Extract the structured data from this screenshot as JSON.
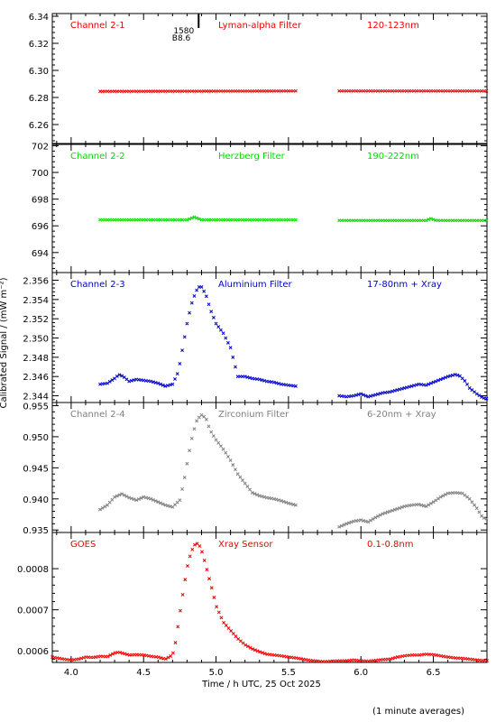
{
  "chart_data": {
    "type": "scatter",
    "xlabel": "Time / h UTC, 25 Oct 2025",
    "ylabel": "Calibrated Signal / (mW m⁻²)",
    "footnote": "(1 minute averages)",
    "xlim": [
      3.87,
      6.87
    ],
    "xticks": [
      "4.0",
      "4.5",
      "5.0",
      "5.5",
      "6.0",
      "6.5"
    ],
    "marker": {
      "label": "1580",
      "sublabel": "B8.6",
      "x": 4.88
    },
    "panels": [
      {
        "channel": "Channel 2-1",
        "filter": "Lyman-alpha Filter",
        "band": "120-123nm",
        "color": "#ee0000",
        "ylim": [
          6.246,
          6.342
        ],
        "yticks": [
          "6.26",
          "6.28",
          "6.30",
          "6.32",
          "6.34"
        ],
        "series": [
          {
            "x": [
              4.2,
              5.55
            ],
            "y": [
              6.2845,
              6.2848
            ]
          },
          {
            "x": [
              5.85,
              6.87
            ],
            "y": [
              6.2848,
              6.2848
            ]
          }
        ]
      },
      {
        "channel": "Channel 2-2",
        "filter": "Herzberg Filter",
        "band": "190-222nm",
        "color": "#00dd00",
        "ylim": [
          692.5,
          702.1
        ],
        "yticks": [
          "694",
          "696",
          "698",
          "700",
          "702"
        ],
        "series": [
          {
            "x": [
              4.2,
              4.8,
              4.85,
              4.9,
              5.55
            ],
            "y": [
              696.45,
              696.45,
              696.65,
              696.45,
              696.45
            ]
          },
          {
            "x": [
              5.85,
              6.45,
              6.48,
              6.52,
              6.87
            ],
            "y": [
              696.4,
              696.4,
              696.55,
              696.4,
              696.4
            ]
          }
        ]
      },
      {
        "channel": "Channel 2-3",
        "filter": "Aluminium Filter",
        "band": "17-80nm + Xray",
        "color": "#0000cc",
        "ylim": [
          2.3433,
          2.3568
        ],
        "yticks": [
          "2.344",
          "2.346",
          "2.348",
          "2.350",
          "2.352",
          "2.354",
          "2.356"
        ],
        "series": [
          {
            "x": [
              4.2,
              4.25,
              4.3,
              4.33,
              4.36,
              4.4,
              4.45,
              4.5,
              4.55,
              4.6,
              4.65,
              4.7,
              4.74,
              4.77,
              4.8,
              4.83,
              4.86,
              4.88,
              4.9,
              4.93,
              4.96,
              5.0,
              5.05,
              5.1,
              5.15,
              5.2,
              5.25,
              5.3,
              5.35,
              5.4,
              5.45,
              5.5,
              5.55
            ],
            "y": [
              2.3452,
              2.3453,
              2.3458,
              2.3462,
              2.346,
              2.3455,
              2.3457,
              2.3456,
              2.3455,
              2.3453,
              2.345,
              2.3452,
              2.3465,
              2.349,
              2.3515,
              2.3535,
              2.3548,
              2.3553,
              2.3553,
              2.3545,
              2.353,
              2.3515,
              2.3505,
              2.349,
              2.346,
              2.346,
              2.3458,
              2.3457,
              2.3455,
              2.3454,
              2.3452,
              2.3451,
              2.345
            ]
          },
          {
            "x": [
              5.85,
              5.9,
              5.95,
              6.0,
              6.05,
              6.1,
              6.15,
              6.2,
              6.25,
              6.3,
              6.35,
              6.4,
              6.45,
              6.5,
              6.55,
              6.6,
              6.65,
              6.68,
              6.72,
              6.75,
              6.8,
              6.84,
              6.87
            ],
            "y": [
              2.344,
              2.3439,
              2.344,
              2.3442,
              2.3439,
              2.3441,
              2.3443,
              2.3444,
              2.3446,
              2.3448,
              2.345,
              2.3452,
              2.3451,
              2.3454,
              2.3457,
              2.346,
              2.3462,
              2.3461,
              2.3455,
              2.3448,
              2.3442,
              2.3438,
              2.3437
            ]
          }
        ]
      },
      {
        "channel": "Channel 2-4",
        "filter": "Zirconium Filter",
        "band": "6-20nm + Xray",
        "color": "#808080",
        "ylim": [
          0.9346,
          0.9555
        ],
        "yticks": [
          "0.935",
          "0.940",
          "0.945",
          "0.950",
          "0.955"
        ],
        "series": [
          {
            "x": [
              4.2,
              4.25,
              4.3,
              4.35,
              4.4,
              4.45,
              4.5,
              4.55,
              4.6,
              4.65,
              4.7,
              4.75,
              4.78,
              4.81,
              4.84,
              4.87,
              4.9,
              4.93,
              4.96,
              5.0,
              5.05,
              5.1,
              5.15,
              5.2,
              5.25,
              5.3,
              5.35,
              5.4,
              5.45,
              5.5,
              5.55
            ],
            "y": [
              0.9383,
              0.939,
              0.9403,
              0.9408,
              0.9402,
              0.9398,
              0.9403,
              0.94,
              0.9395,
              0.939,
              0.9387,
              0.9398,
              0.943,
              0.947,
              0.9505,
              0.9528,
              0.9535,
              0.953,
              0.951,
              0.9495,
              0.948,
              0.9462,
              0.944,
              0.9425,
              0.941,
              0.9405,
              0.9402,
              0.94,
              0.9397,
              0.9393,
              0.939
            ]
          },
          {
            "x": [
              5.85,
              5.9,
              5.95,
              6.0,
              6.05,
              6.1,
              6.15,
              6.2,
              6.25,
              6.3,
              6.35,
              6.4,
              6.45,
              6.5,
              6.55,
              6.6,
              6.65,
              6.7,
              6.75,
              6.8,
              6.84,
              6.87
            ],
            "y": [
              0.9355,
              0.936,
              0.9364,
              0.9366,
              0.9363,
              0.937,
              0.9376,
              0.938,
              0.9384,
              0.9388,
              0.939,
              0.9391,
              0.9388,
              0.9395,
              0.9403,
              0.9409,
              0.941,
              0.9409,
              0.94,
              0.9385,
              0.937,
              0.9368
            ]
          }
        ]
      },
      {
        "channel": "GOES",
        "filter": "Xray Sensor",
        "band": "0.1-0.8nm",
        "color": "#ee0000",
        "ylim": [
          0.000572,
          0.000888
        ],
        "yticks": [
          "0.0006",
          "0.0007",
          "0.0008"
        ],
        "series": [
          {
            "x": [
              3.87,
              3.95,
              4.0,
              4.05,
              4.1,
              4.15,
              4.2,
              4.25,
              4.3,
              4.33,
              4.36,
              4.4,
              4.45,
              4.5,
              4.55,
              4.6,
              4.65,
              4.7,
              4.72,
              4.75,
              4.78,
              4.81,
              4.84,
              4.86,
              4.88,
              4.9,
              4.92,
              4.95,
              4.98,
              5.0,
              5.05,
              5.1,
              5.15,
              5.2,
              5.25,
              5.3,
              5.35,
              5.4,
              5.45,
              5.5,
              5.55,
              5.6,
              5.65,
              5.7,
              5.75,
              5.8,
              5.85,
              5.9,
              5.95,
              6.0,
              6.05,
              6.1,
              6.15,
              6.2,
              6.25,
              6.3,
              6.35,
              6.4,
              6.45,
              6.5,
              6.55,
              6.6,
              6.65,
              6.7,
              6.75,
              6.8,
              6.87
            ],
            "y": [
              0.000585,
              0.00058,
              0.000578,
              0.00058,
              0.000585,
              0.000584,
              0.000587,
              0.000586,
              0.000595,
              0.000597,
              0.000594,
              0.00059,
              0.000591,
              0.00059,
              0.000587,
              0.000585,
              0.00058,
              0.00059,
              0.00062,
              0.00069,
              0.00076,
              0.00082,
              0.00085,
              0.000862,
              0.00086,
              0.000845,
              0.00082,
              0.00078,
              0.00074,
              0.00071,
              0.00067,
              0.00065,
              0.00063,
              0.000615,
              0.000605,
              0.000598,
              0.000592,
              0.00059,
              0.000588,
              0.000585,
              0.000583,
              0.00058,
              0.000577,
              0.000575,
              0.000574,
              0.000575,
              0.000576,
              0.000576,
              0.000578,
              0.000576,
              0.000575,
              0.000577,
              0.000579,
              0.00058,
              0.000585,
              0.000588,
              0.00059,
              0.00059,
              0.000592,
              0.000591,
              0.000588,
              0.000585,
              0.000583,
              0.000582,
              0.00058,
              0.000578,
              0.000576
            ]
          }
        ]
      }
    ]
  }
}
